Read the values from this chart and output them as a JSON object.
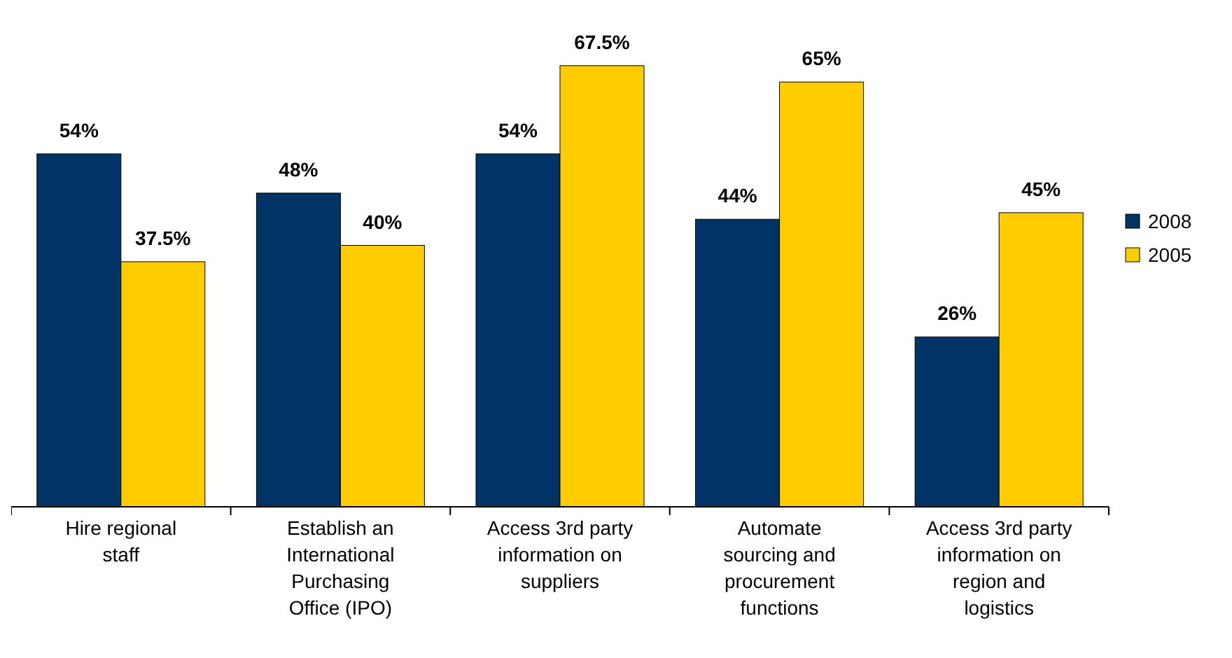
{
  "chart_data": {
    "type": "bar",
    "categories": [
      "Hire regional staff",
      "Establish an International Purchasing Office (IPO)",
      "Access 3rd party information on suppliers",
      "Automate sourcing and procurement functions",
      "Access 3rd party information on region and logistics"
    ],
    "series": [
      {
        "name": "2008",
        "color": "#003366",
        "values": [
          54,
          48,
          54,
          44,
          26
        ],
        "value_labels": [
          "54%",
          "48%",
          "54%",
          "44%",
          "26%"
        ]
      },
      {
        "name": "2005",
        "color": "#ffcc00",
        "values": [
          37.5,
          40,
          67.5,
          65,
          45
        ],
        "value_labels": [
          "37.5%",
          "40%",
          "67.5%",
          "65%",
          "45%"
        ]
      }
    ],
    "legend": "right"
  }
}
